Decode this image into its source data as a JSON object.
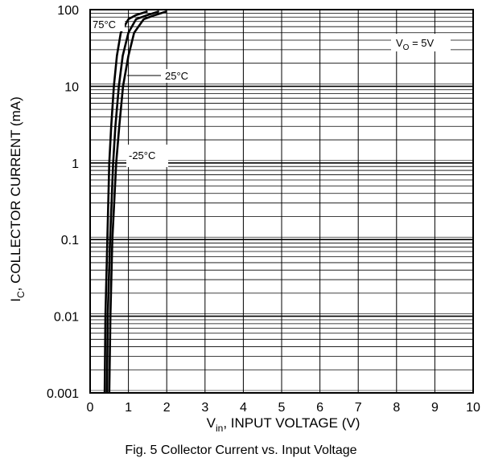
{
  "chart_data": {
    "type": "line",
    "title": "Fig. 5  Collector Current vs. Input Voltage",
    "xlabel": "V_in, INPUT VOLTAGE (V)",
    "xlabel_main": "V",
    "xlabel_sub": "in",
    "xlabel_rest": ", INPUT VOLTAGE (V)",
    "ylabel": "I_C, COLLECTOR CURRENT (mA)",
    "ylabel_main": "I",
    "ylabel_sub": "C",
    "ylabel_rest": ", COLLECTOR CURRENT (mA)",
    "xlim": [
      0,
      10
    ],
    "ylim": [
      0.001,
      100
    ],
    "yscale": "log",
    "grid": true,
    "x_ticks": [
      "0",
      "1",
      "2",
      "3",
      "4",
      "5",
      "6",
      "7",
      "8",
      "9",
      "10"
    ],
    "y_ticks": [
      "0.001",
      "0.01",
      "0.1",
      "1",
      "10",
      "100"
    ],
    "annotation": {
      "main": "V",
      "sub": "O",
      "rest": " = 5V"
    },
    "series": [
      {
        "name": "75°C",
        "x": [
          0.38,
          0.4,
          0.45,
          0.5,
          0.55,
          0.62,
          0.7,
          0.8,
          1.0,
          1.2,
          1.5
        ],
        "y": [
          0.001,
          0.01,
          0.1,
          1,
          3,
          10,
          25,
          50,
          75,
          85,
          95
        ]
      },
      {
        "name": "25°C",
        "x": [
          0.44,
          0.46,
          0.52,
          0.6,
          0.66,
          0.75,
          0.85,
          1.0,
          1.2,
          1.5,
          1.8
        ],
        "y": [
          0.001,
          0.01,
          0.1,
          1,
          3,
          10,
          25,
          50,
          75,
          85,
          95
        ]
      },
      {
        "name": "-25°C",
        "x": [
          0.5,
          0.53,
          0.58,
          0.68,
          0.76,
          0.86,
          1.0,
          1.15,
          1.4,
          1.7,
          2.0
        ],
        "y": [
          0.001,
          0.01,
          0.1,
          1,
          3,
          10,
          25,
          50,
          75,
          85,
          95
        ]
      }
    ]
  }
}
